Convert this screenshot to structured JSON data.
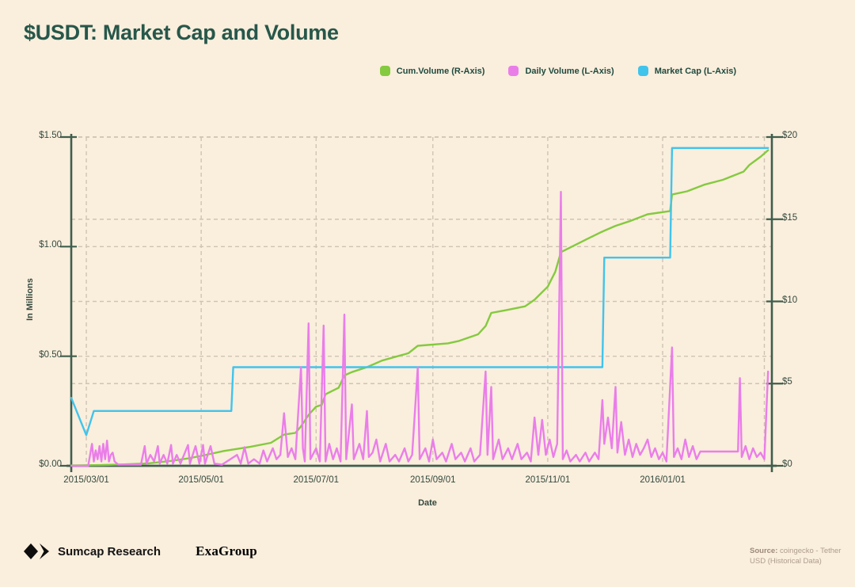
{
  "title": "$USDT: Market Cap and Volume",
  "legend": {
    "items": [
      {
        "id": "cum-volume",
        "label": "Cum.Volume (R-Axis)",
        "color": "#84ca3e"
      },
      {
        "id": "daily-volume",
        "label": "Daily Volume (L-Axis)",
        "color": "#ea7ee9"
      },
      {
        "id": "market-cap",
        "label": "Market Cap (L-Axis)",
        "color": "#40c4ec"
      }
    ]
  },
  "footer": {
    "brand": "Sumcap Research",
    "partner": "ExaGroup",
    "source_label": "Source:",
    "source_text": "coingecko - Tether USD (Historical Data)"
  },
  "chart_data": {
    "type": "line",
    "title": "$USDT: Market Cap and Volume",
    "grid": true,
    "colors": {
      "background": "#faeedd",
      "axis": "#3f5e4d",
      "gridline": "#cfc3b3"
    },
    "x_axis": {
      "label": "Date",
      "domain": [
        "2015-02-21",
        "2016-02-28"
      ],
      "ticks": [
        {
          "date": "2015-03-01",
          "label": "2015/03/01"
        },
        {
          "date": "2015-05-01",
          "label": "2015/05/01"
        },
        {
          "date": "2015-07-01",
          "label": "2015/07/01"
        },
        {
          "date": "2015-09-01",
          "label": "2015/09/01"
        },
        {
          "date": "2015-11-01",
          "label": "2015/11/01"
        },
        {
          "date": "2016-01-01",
          "label": "2016/01/01"
        }
      ],
      "end_gridline": "2016-02-24"
    },
    "y_left": {
      "label": "In Millions",
      "range": [
        0,
        1.5
      ],
      "ticks": [
        {
          "v": 0,
          "label": "$0.00"
        },
        {
          "v": 0.5,
          "label": "$0.50"
        },
        {
          "v": 1,
          "label": "$1.00"
        },
        {
          "v": 1.5,
          "label": "$1.50"
        }
      ]
    },
    "y_right": {
      "label": "",
      "range": [
        0,
        20
      ],
      "ticks": [
        {
          "v": 0,
          "label": "$0"
        },
        {
          "v": 5,
          "label": "$5"
        },
        {
          "v": 10,
          "label": "$10"
        },
        {
          "v": 15,
          "label": "$15"
        },
        {
          "v": 20,
          "label": "$20"
        }
      ]
    },
    "series": [
      {
        "id": "cum-volume",
        "name": "Cum.Volume (R-Axis)",
        "axis": "right",
        "color": "#84ca3e",
        "points": [
          [
            "2015-02-21",
            0.02
          ],
          [
            "2015-03-10",
            0.05
          ],
          [
            "2015-03-20",
            0.08
          ],
          [
            "2015-04-03",
            0.15
          ],
          [
            "2015-04-15",
            0.3
          ],
          [
            "2015-04-24",
            0.45
          ],
          [
            "2015-05-01",
            0.6
          ],
          [
            "2015-05-13",
            0.9
          ],
          [
            "2015-05-27",
            1.15
          ],
          [
            "2015-06-07",
            1.4
          ],
          [
            "2015-06-14",
            1.9
          ],
          [
            "2015-06-20",
            2.0
          ],
          [
            "2015-06-23",
            2.4
          ],
          [
            "2015-06-27",
            3.1
          ],
          [
            "2015-07-01",
            3.6
          ],
          [
            "2015-07-04",
            3.7
          ],
          [
            "2015-07-06",
            4.35
          ],
          [
            "2015-07-13",
            4.75
          ],
          [
            "2015-07-16",
            5.5
          ],
          [
            "2015-07-20",
            5.7
          ],
          [
            "2015-07-28",
            6.0
          ],
          [
            "2015-08-05",
            6.4
          ],
          [
            "2015-08-19",
            6.85
          ],
          [
            "2015-08-24",
            7.3
          ],
          [
            "2015-09-09",
            7.45
          ],
          [
            "2015-09-15",
            7.6
          ],
          [
            "2015-09-25",
            8.0
          ],
          [
            "2015-09-29",
            8.5
          ],
          [
            "2015-10-02",
            9.3
          ],
          [
            "2015-10-09",
            9.45
          ],
          [
            "2015-10-20",
            9.7
          ],
          [
            "2015-10-25",
            10.1
          ],
          [
            "2015-11-01",
            10.9
          ],
          [
            "2015-11-05",
            11.8
          ],
          [
            "2015-11-08",
            13.0
          ],
          [
            "2015-11-15",
            13.4
          ],
          [
            "2015-11-22",
            13.8
          ],
          [
            "2015-11-29",
            14.2
          ],
          [
            "2015-12-07",
            14.6
          ],
          [
            "2015-12-15",
            14.9
          ],
          [
            "2015-12-24",
            15.3
          ],
          [
            "2016-01-05",
            15.5
          ],
          [
            "2016-01-06",
            16.5
          ],
          [
            "2016-01-14",
            16.7
          ],
          [
            "2016-01-23",
            17.1
          ],
          [
            "2016-02-02",
            17.4
          ],
          [
            "2016-02-13",
            17.9
          ],
          [
            "2016-02-16",
            18.3
          ],
          [
            "2016-02-22",
            18.8
          ],
          [
            "2016-02-26",
            19.2
          ]
        ]
      },
      {
        "id": "market-cap",
        "name": "Market Cap (L-Axis)",
        "axis": "left",
        "color": "#40c4ec",
        "points": [
          [
            "2015-02-21",
            0.31
          ],
          [
            "2015-03-01",
            0.14
          ],
          [
            "2015-03-05",
            0.25
          ],
          [
            "2015-05-17",
            0.25
          ],
          [
            "2015-05-18",
            0.45
          ],
          [
            "2015-11-30",
            0.45
          ],
          [
            "2015-12-01",
            0.95
          ],
          [
            "2016-01-05",
            0.95
          ],
          [
            "2016-01-06",
            1.45
          ],
          [
            "2016-02-26",
            1.45
          ]
        ]
      },
      {
        "id": "daily-volume",
        "name": "Daily Volume (L-Axis)",
        "axis": "left",
        "color": "#ea7ee9",
        "points": [
          [
            "2015-02-21",
            0
          ],
          [
            "2015-03-02",
            0
          ],
          [
            "2015-03-04",
            0.1
          ],
          [
            "2015-03-05",
            0.02
          ],
          [
            "2015-03-06",
            0.07
          ],
          [
            "2015-03-07",
            0.03
          ],
          [
            "2015-03-08",
            0.09
          ],
          [
            "2015-03-09",
            0.02
          ],
          [
            "2015-03-10",
            0.1
          ],
          [
            "2015-03-11",
            0.03
          ],
          [
            "2015-03-12",
            0.115
          ],
          [
            "2015-03-13",
            0.02
          ],
          [
            "2015-03-14",
            0.05
          ],
          [
            "2015-03-15",
            0.06
          ],
          [
            "2015-03-16",
            0.02
          ],
          [
            "2015-03-18",
            0.005
          ],
          [
            "2015-03-30",
            0.005
          ],
          [
            "2015-04-01",
            0.09
          ],
          [
            "2015-04-02",
            0.01
          ],
          [
            "2015-04-04",
            0.05
          ],
          [
            "2015-04-06",
            0.02
          ],
          [
            "2015-04-08",
            0.09
          ],
          [
            "2015-04-09",
            0.01
          ],
          [
            "2015-04-11",
            0.05
          ],
          [
            "2015-04-13",
            0.01
          ],
          [
            "2015-04-15",
            0.095
          ],
          [
            "2015-04-16",
            0.01
          ],
          [
            "2015-04-18",
            0.05
          ],
          [
            "2015-04-20",
            0.01
          ],
          [
            "2015-04-24",
            0.095
          ],
          [
            "2015-04-25",
            0.01
          ],
          [
            "2015-04-28",
            0.09
          ],
          [
            "2015-04-30",
            0.01
          ],
          [
            "2015-05-02",
            0.095
          ],
          [
            "2015-05-03",
            0.01
          ],
          [
            "2015-05-06",
            0.09
          ],
          [
            "2015-05-08",
            0.01
          ],
          [
            "2015-05-12",
            0.005
          ],
          [
            "2015-05-20",
            0.05
          ],
          [
            "2015-05-22",
            0.01
          ],
          [
            "2015-05-24",
            0.085
          ],
          [
            "2015-05-26",
            0.01
          ],
          [
            "2015-05-29",
            0.03
          ],
          [
            "2015-06-01",
            0.01
          ],
          [
            "2015-06-03",
            0.07
          ],
          [
            "2015-06-05",
            0.02
          ],
          [
            "2015-06-08",
            0.08
          ],
          [
            "2015-06-10",
            0.03
          ],
          [
            "2015-06-12",
            0.05
          ],
          [
            "2015-06-14",
            0.24
          ],
          [
            "2015-06-16",
            0.04
          ],
          [
            "2015-06-18",
            0.08
          ],
          [
            "2015-06-20",
            0.03
          ],
          [
            "2015-06-23",
            0.45
          ],
          [
            "2015-06-24",
            0.08
          ],
          [
            "2015-06-25",
            0.02
          ],
          [
            "2015-06-27",
            0.65
          ],
          [
            "2015-06-28",
            0.03
          ],
          [
            "2015-07-01",
            0.08
          ],
          [
            "2015-07-03",
            0.02
          ],
          [
            "2015-07-05",
            0.64
          ],
          [
            "2015-07-06",
            0.02
          ],
          [
            "2015-07-08",
            0.1
          ],
          [
            "2015-07-10",
            0.03
          ],
          [
            "2015-07-12",
            0.08
          ],
          [
            "2015-07-14",
            0.02
          ],
          [
            "2015-07-16",
            0.69
          ],
          [
            "2015-07-17",
            0.03
          ],
          [
            "2015-07-20",
            0.28
          ],
          [
            "2015-07-21",
            0.03
          ],
          [
            "2015-07-24",
            0.1
          ],
          [
            "2015-07-26",
            0.03
          ],
          [
            "2015-07-28",
            0.25
          ],
          [
            "2015-07-29",
            0.04
          ],
          [
            "2015-07-31",
            0.06
          ],
          [
            "2015-08-02",
            0.12
          ],
          [
            "2015-08-04",
            0.02
          ],
          [
            "2015-08-07",
            0.1
          ],
          [
            "2015-08-09",
            0.02
          ],
          [
            "2015-08-12",
            0.05
          ],
          [
            "2015-08-14",
            0.02
          ],
          [
            "2015-08-17",
            0.08
          ],
          [
            "2015-08-19",
            0.02
          ],
          [
            "2015-08-21",
            0.05
          ],
          [
            "2015-08-24",
            0.45
          ],
          [
            "2015-08-25",
            0.03
          ],
          [
            "2015-08-28",
            0.08
          ],
          [
            "2015-08-30",
            0.02
          ],
          [
            "2015-09-01",
            0.12
          ],
          [
            "2015-09-03",
            0.03
          ],
          [
            "2015-09-06",
            0.06
          ],
          [
            "2015-09-08",
            0.02
          ],
          [
            "2015-09-11",
            0.1
          ],
          [
            "2015-09-13",
            0.03
          ],
          [
            "2015-09-16",
            0.06
          ],
          [
            "2015-09-18",
            0.02
          ],
          [
            "2015-09-21",
            0.08
          ],
          [
            "2015-09-23",
            0.02
          ],
          [
            "2015-09-26",
            0.05
          ],
          [
            "2015-09-29",
            0.43
          ],
          [
            "2015-09-30",
            0.05
          ],
          [
            "2015-10-02",
            0.36
          ],
          [
            "2015-10-03",
            0.03
          ],
          [
            "2015-10-06",
            0.12
          ],
          [
            "2015-10-08",
            0.03
          ],
          [
            "2015-10-11",
            0.08
          ],
          [
            "2015-10-13",
            0.03
          ],
          [
            "2015-10-16",
            0.1
          ],
          [
            "2015-10-18",
            0.03
          ],
          [
            "2015-10-21",
            0.06
          ],
          [
            "2015-10-23",
            0.02
          ],
          [
            "2015-10-25",
            0.22
          ],
          [
            "2015-10-27",
            0.05
          ],
          [
            "2015-10-29",
            0.21
          ],
          [
            "2015-10-31",
            0.05
          ],
          [
            "2015-11-02",
            0.12
          ],
          [
            "2015-11-04",
            0.04
          ],
          [
            "2015-11-06",
            0.1
          ],
          [
            "2015-11-08",
            1.25
          ],
          [
            "2015-11-09",
            0.03
          ],
          [
            "2015-11-11",
            0.07
          ],
          [
            "2015-11-13",
            0.02
          ],
          [
            "2015-11-16",
            0.05
          ],
          [
            "2015-11-18",
            0.02
          ],
          [
            "2015-11-21",
            0.06
          ],
          [
            "2015-11-23",
            0.02
          ],
          [
            "2015-11-26",
            0.06
          ],
          [
            "2015-11-28",
            0.03
          ],
          [
            "2015-11-30",
            0.3
          ],
          [
            "2015-12-01",
            0.1
          ],
          [
            "2015-12-03",
            0.22
          ],
          [
            "2015-12-05",
            0.08
          ],
          [
            "2015-12-07",
            0.36
          ],
          [
            "2015-12-08",
            0.06
          ],
          [
            "2015-12-10",
            0.2
          ],
          [
            "2015-12-12",
            0.05
          ],
          [
            "2015-12-14",
            0.12
          ],
          [
            "2015-12-16",
            0.04
          ],
          [
            "2015-12-18",
            0.1
          ],
          [
            "2015-12-20",
            0.05
          ],
          [
            "2015-12-22",
            0.08
          ],
          [
            "2015-12-24",
            0.12
          ],
          [
            "2015-12-26",
            0.04
          ],
          [
            "2015-12-28",
            0.08
          ],
          [
            "2015-12-30",
            0.03
          ],
          [
            "2016-01-01",
            0.06
          ],
          [
            "2016-01-03",
            0.02
          ],
          [
            "2016-01-06",
            0.54
          ],
          [
            "2016-01-07",
            0.04
          ],
          [
            "2016-01-09",
            0.08
          ],
          [
            "2016-01-11",
            0.03
          ],
          [
            "2016-01-13",
            0.12
          ],
          [
            "2016-01-15",
            0.04
          ],
          [
            "2016-01-17",
            0.09
          ],
          [
            "2016-01-19",
            0.03
          ],
          [
            "2016-01-21",
            0.065
          ],
          [
            "2016-02-10",
            0.065
          ],
          [
            "2016-02-11",
            0.4
          ],
          [
            "2016-02-12",
            0.04
          ],
          [
            "2016-02-14",
            0.09
          ],
          [
            "2016-02-16",
            0.03
          ],
          [
            "2016-02-18",
            0.08
          ],
          [
            "2016-02-20",
            0.04
          ],
          [
            "2016-02-22",
            0.06
          ],
          [
            "2016-02-24",
            0.03
          ],
          [
            "2016-02-26",
            0.43
          ]
        ]
      }
    ]
  }
}
